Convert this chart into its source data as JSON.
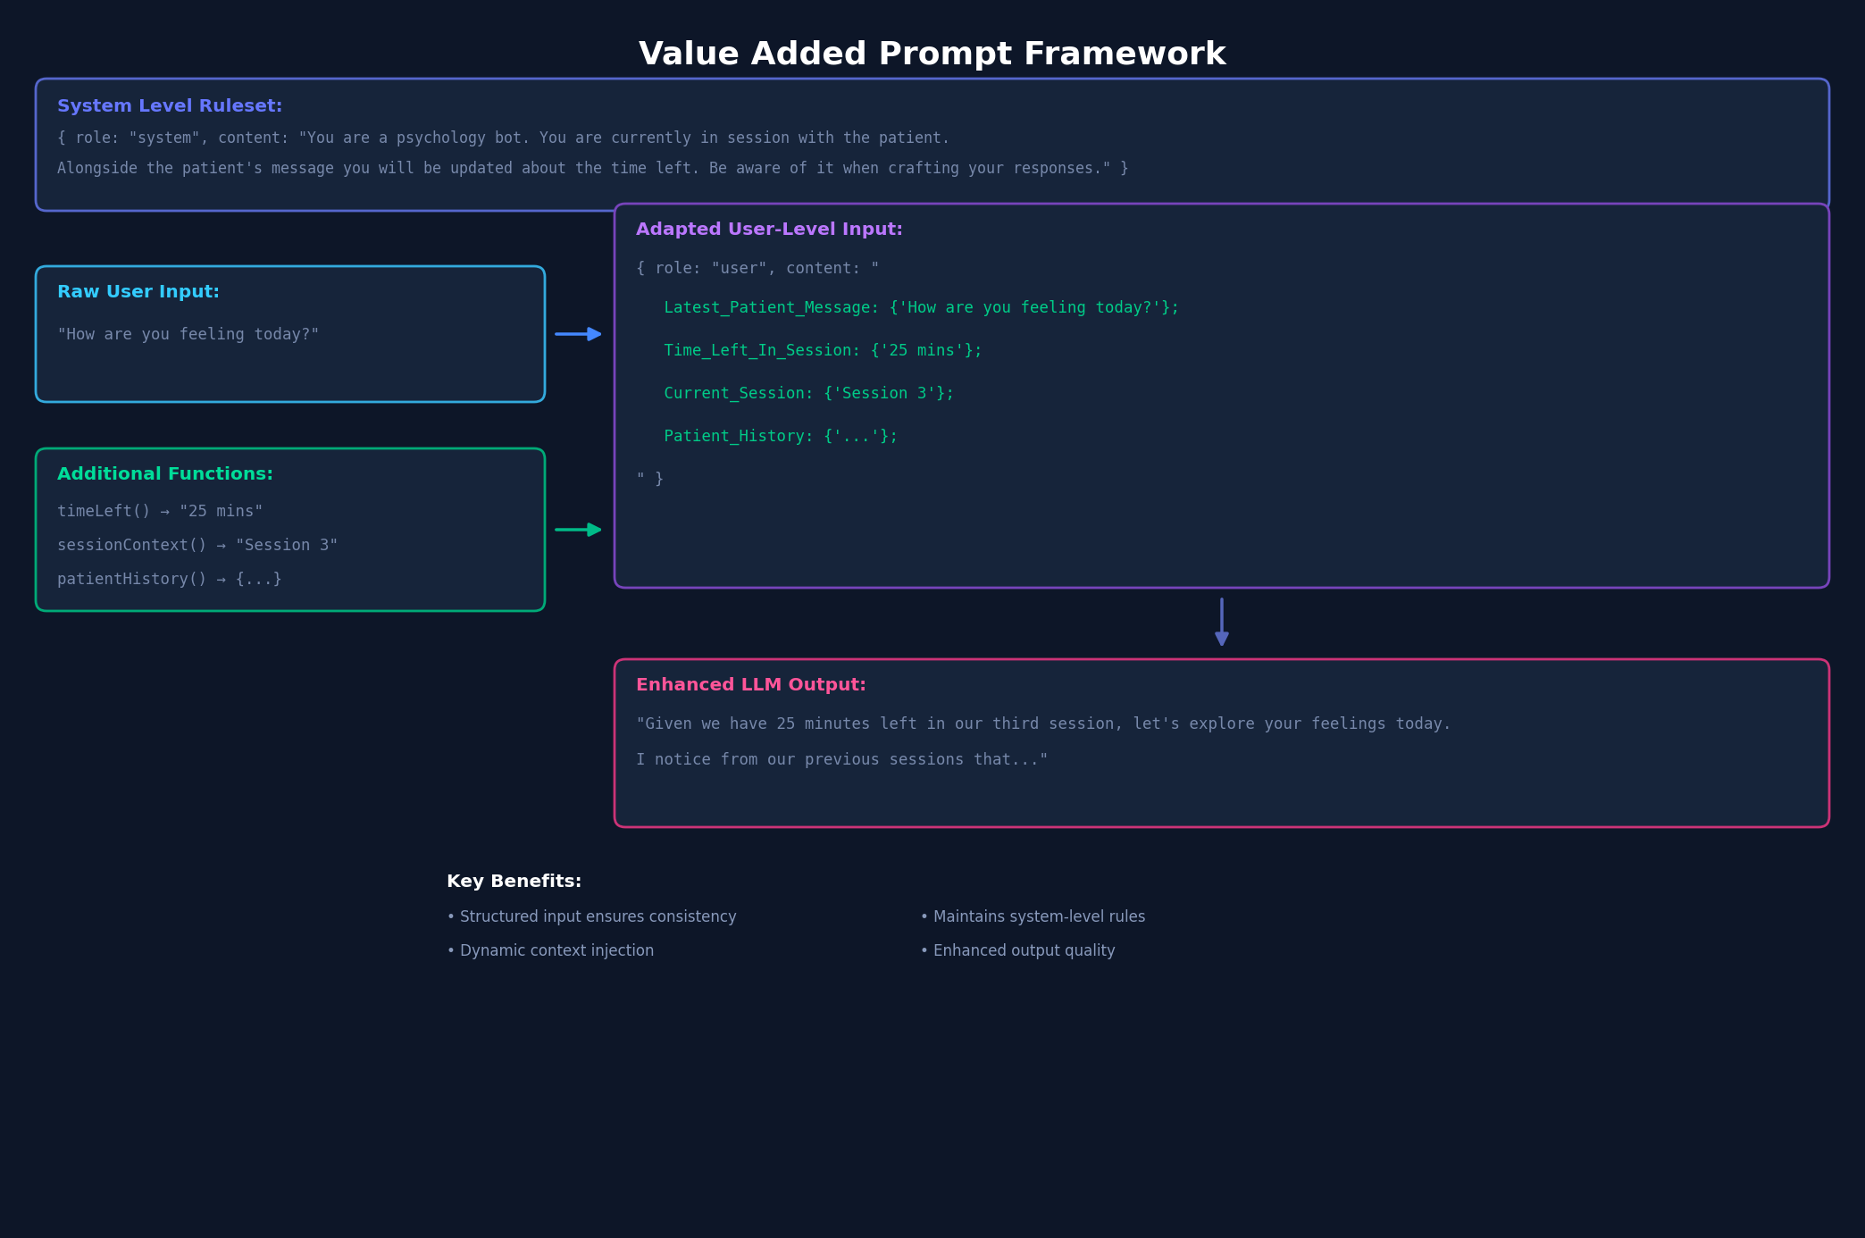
{
  "title": "Value Added Prompt Framework",
  "title_color": "#ffffff",
  "title_fontsize": 26,
  "bg_color": "#0d1628",
  "box_bg_color": "#16243a",
  "system_box": {
    "label": "System Level Ruleset:",
    "label_color": "#6677ff",
    "border_color": "#5566cc",
    "text_color": "#7788aa",
    "text_lines": [
      "{ role: \"system\", content: \"You are a psychology bot. You are currently in session with the patient.",
      "Alongside the patient's message you will be updated about the time left. Be aware of it when crafting your responses.\" }"
    ]
  },
  "raw_input_box": {
    "label": "Raw User Input:",
    "label_color": "#33ccff",
    "border_color": "#33aadd",
    "text_color": "#7788aa",
    "text_lines": [
      "\"How are you feeling today?\""
    ]
  },
  "functions_box": {
    "label": "Additional Functions:",
    "label_color": "#00dd99",
    "border_color": "#00aa77",
    "text_color": "#7788aa",
    "text_lines": [
      "timeLeft() → \"25 mins\"",
      "sessionContext() → \"Session 3\"",
      "patientHistory() → {...}"
    ]
  },
  "adapted_box": {
    "label": "Adapted User-Level Input:",
    "label_color": "#bb77ff",
    "border_color": "#7744bb",
    "text_color": "#7788aa",
    "highlight_color": "#00cc88",
    "text_lines": [
      "{ role: \"user\", content: \"",
      "   Latest_Patient_Message: {'How are you feeling today?'};",
      "   Time_Left_In_Session: {'25 mins'};",
      "   Current_Session: {'Session 3'};",
      "   Patient_History: {'...'};",
      "\" }"
    ]
  },
  "output_box": {
    "label": "Enhanced LLM Output:",
    "label_color": "#ff5599",
    "border_color": "#cc3377",
    "text_color": "#7788aa",
    "text_lines": [
      "\"Given we have 25 minutes left in our third session, let's explore your feelings today.",
      "I notice from our previous sessions that...\""
    ]
  },
  "benefits": {
    "title": "Key Benefits:",
    "title_color": "#ffffff",
    "text_color": "#8899bb",
    "items_left": [
      "• Structured input ensures consistency",
      "• Dynamic context injection"
    ],
    "items_right": [
      "• Maintains system-level rules",
      "• Enhanced output quality"
    ]
  },
  "arrow_color_blue": "#4488ff",
  "arrow_color_green": "#00bb88",
  "arrow_color_purple": "#5566bb"
}
